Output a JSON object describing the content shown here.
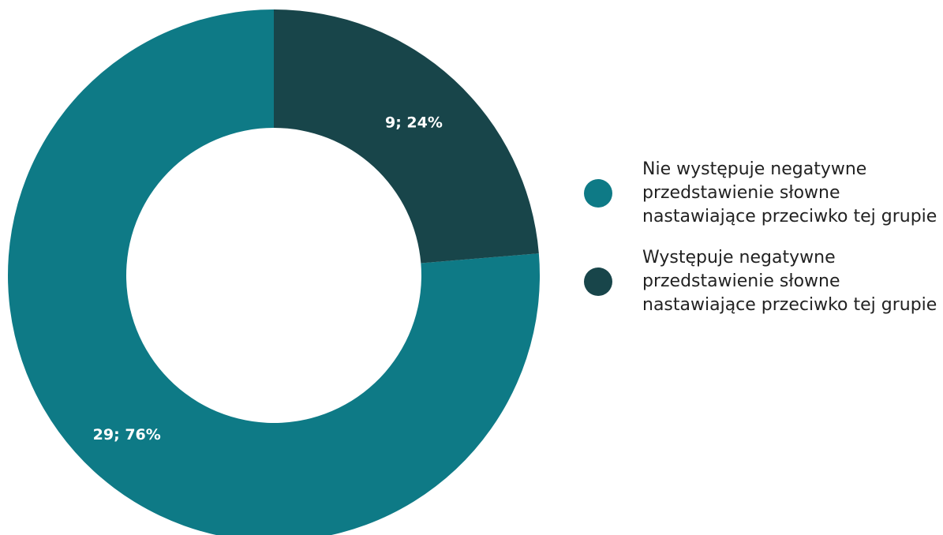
{
  "chart_data": {
    "type": "donut",
    "categories": [
      "Nie występuje negatywne przedstawienie słowne nastawiające przeciwko tej grupie",
      "Występuje negatywne przedstawienie słowne nastawiające przeciwko tej grupie"
    ],
    "values": [
      29,
      9
    ],
    "value_labels": [
      "29; 76%",
      "9; 24%"
    ],
    "colors": [
      "#0e7a86",
      "#18454a"
    ],
    "legend": "right"
  }
}
